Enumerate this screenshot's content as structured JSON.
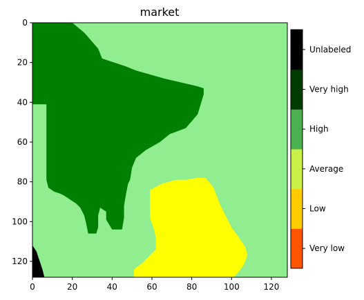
{
  "map": {
    "title": "market",
    "x_ticks": [
      "0",
      "20",
      "40",
      "60",
      "80",
      "100",
      "120"
    ],
    "y_ticks": [
      "0",
      "20",
      "40",
      "60",
      "80",
      "100",
      "120"
    ],
    "x_range": [
      0,
      128
    ],
    "y_range": [
      0,
      128
    ],
    "y_axis_direction": "downward",
    "colors": {
      "background_region": "#90ee90",
      "dark_region": "#008000",
      "yellow_region": "#ffff00",
      "unlabeled_corner": "#000000"
    },
    "regions": {
      "dark_region": [
        [
          0,
          0
        ],
        [
          20,
          0
        ],
        [
          26,
          5
        ],
        [
          33,
          13
        ],
        [
          35,
          18
        ],
        [
          47,
          22
        ],
        [
          52,
          24
        ],
        [
          66,
          28
        ],
        [
          83,
          32
        ],
        [
          86,
          33
        ],
        [
          86,
          36
        ],
        [
          83,
          46
        ],
        [
          77,
          53
        ],
        [
          69,
          56
        ],
        [
          64,
          60
        ],
        [
          57,
          64
        ],
        [
          52,
          68
        ],
        [
          50,
          73
        ],
        [
          49,
          79
        ],
        [
          48,
          81
        ],
        [
          47,
          86
        ],
        [
          46,
          92
        ],
        [
          46,
          98
        ],
        [
          45,
          104
        ],
        [
          40,
          104
        ],
        [
          37,
          99
        ],
        [
          37,
          95
        ],
        [
          34,
          93
        ],
        [
          33,
          97
        ],
        [
          33,
          103
        ],
        [
          32,
          106
        ],
        [
          28,
          106
        ],
        [
          27,
          101
        ],
        [
          26,
          97
        ],
        [
          24,
          93
        ],
        [
          22,
          91
        ],
        [
          19,
          89
        ],
        [
          16,
          87
        ],
        [
          14,
          86
        ],
        [
          11,
          85
        ],
        [
          8,
          83
        ],
        [
          7,
          79
        ],
        [
          7,
          66
        ],
        [
          7,
          59
        ],
        [
          7,
          51
        ],
        [
          7,
          44
        ],
        [
          7,
          41
        ],
        [
          0,
          41
        ]
      ],
      "yellow_region": [
        [
          59,
          84
        ],
        [
          65,
          81
        ],
        [
          72,
          79
        ],
        [
          77,
          79
        ],
        [
          83,
          78
        ],
        [
          87,
          78
        ],
        [
          91,
          83
        ],
        [
          94,
          91
        ],
        [
          97,
          97
        ],
        [
          100,
          103
        ],
        [
          103,
          107
        ],
        [
          105,
          110
        ],
        [
          107,
          113
        ],
        [
          108,
          117
        ],
        [
          106,
          122
        ],
        [
          103,
          126
        ],
        [
          101,
          128
        ],
        [
          51,
          128
        ],
        [
          51,
          124
        ],
        [
          55,
          121
        ],
        [
          59,
          117
        ],
        [
          62,
          114
        ],
        [
          62,
          108
        ],
        [
          61,
          104
        ],
        [
          59,
          98
        ],
        [
          59,
          92
        ]
      ],
      "unlabeled_corner": [
        [
          0,
          112
        ],
        [
          2,
          115
        ],
        [
          3,
          118
        ],
        [
          4,
          121
        ],
        [
          5,
          124
        ],
        [
          6,
          128
        ],
        [
          0,
          128
        ]
      ]
    },
    "colorbar": {
      "colors": [
        "#ff5500",
        "#ffcc00",
        "#c8f048",
        "#4cb050",
        "#003c00",
        "#000000"
      ],
      "labels": [
        "Very low",
        "Low",
        "Average",
        "High",
        "Very high",
        "Unlabeled"
      ]
    }
  }
}
